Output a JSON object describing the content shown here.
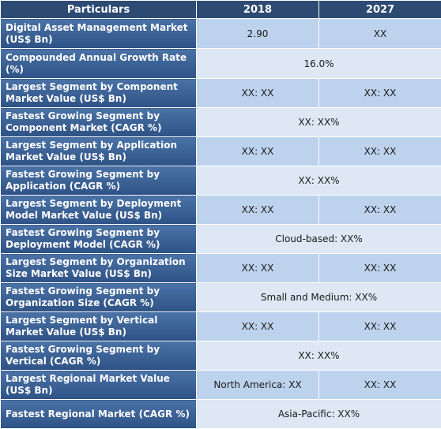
{
  "header": {
    "col1": "Particulars",
    "col2": "2018",
    "col3": "2027"
  },
  "rows": [
    {
      "label": "Digital Asset Management Market (US$ Bn)",
      "v2018": "2.90",
      "v2027": "XX"
    },
    {
      "label": "Compounded Annual Growth Rate (%)",
      "merged": "16.0%"
    },
    {
      "label": "Largest Segment by Component Market Value (US$ Bn)",
      "v2018": "XX: XX",
      "v2027": "XX: XX"
    },
    {
      "label": "Fastest Growing Segment by Component Market (CAGR %)",
      "merged": "XX: XX%"
    },
    {
      "label": "Largest Segment by Application Market Value (US$ Bn)",
      "v2018": "XX: XX",
      "v2027": "XX: XX"
    },
    {
      "label": "Fastest Growing Segment by Application (CAGR %)",
      "merged": "XX: XX%"
    },
    {
      "label": "Largest Segment by Deployment Model Market Value (US$ Bn)",
      "v2018": "XX: XX",
      "v2027": "XX: XX"
    },
    {
      "label": "Fastest Growing Segment by Deployment Model (CAGR %)",
      "merged": "Cloud-based: XX%"
    },
    {
      "label": "Largest Segment by Organization Size Market Value (US$ Bn)",
      "v2018": "XX: XX",
      "v2027": "XX: XX"
    },
    {
      "label": "Fastest Growing Segment by Organization Size (CAGR %)",
      "merged": "Small and Medium: XX%"
    },
    {
      "label": "Largest Segment by Vertical Market Value (US$ Bn)",
      "v2018": "XX: XX",
      "v2027": "XX: XX"
    },
    {
      "label": "Fastest Growing Segment by Vertical (CAGR %)",
      "merged": "XX: XX%"
    },
    {
      "label": "Largest Regional Market Value (US$ Bn)",
      "v2018": "North America: XX",
      "v2027": "XX: XX"
    },
    {
      "label": "Fastest Regional Market (CAGR %)",
      "merged": "Asia-Pacific: XX%"
    }
  ]
}
